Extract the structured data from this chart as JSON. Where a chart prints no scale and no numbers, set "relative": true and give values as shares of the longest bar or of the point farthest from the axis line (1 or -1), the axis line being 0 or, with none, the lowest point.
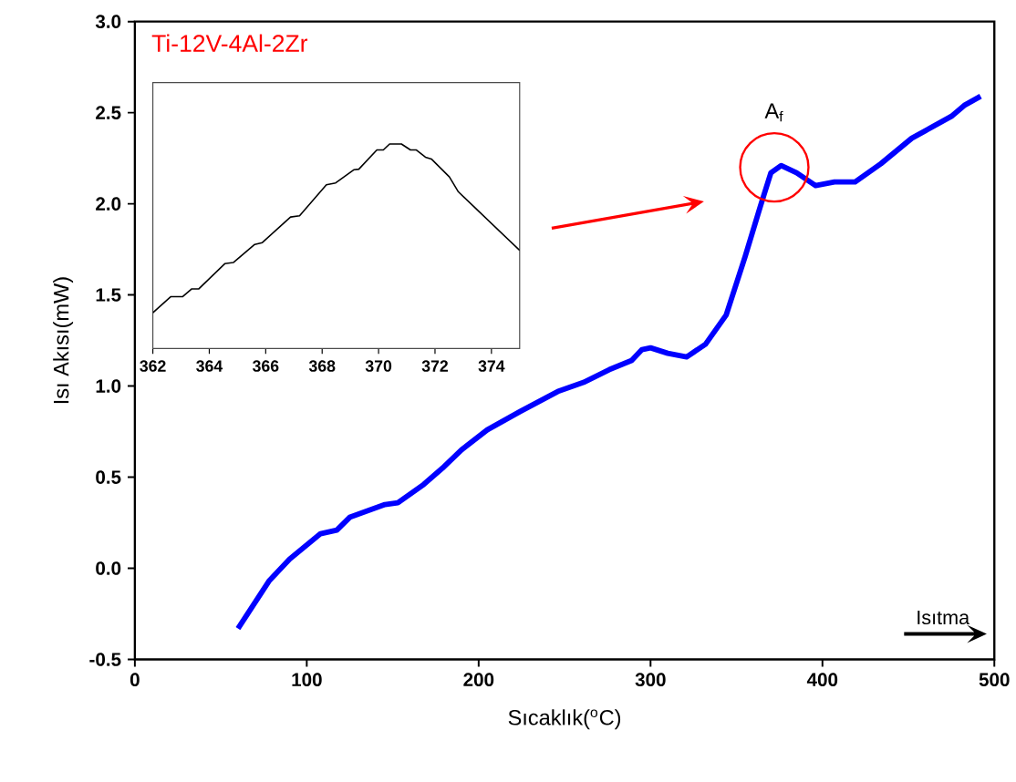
{
  "chart_data": [
    {
      "type": "line",
      "xlabel": "Sıcaklık($^{o}$C)",
      "ylabel": "Isı Akısı(mW)",
      "annotations": [
        "Ti-12V-4Al-2Zr",
        {
          "text": "A$_{f}$",
          "x": 372,
          "y": 2.2
        },
        "Isıtma"
      ],
      "x": [
        60,
        78,
        90,
        108,
        117.5,
        125,
        145.5,
        153,
        168,
        179,
        190,
        205,
        224,
        246,
        261,
        276,
        289,
        295,
        300,
        310,
        321,
        332,
        344,
        355,
        364,
        370,
        376,
        385,
        396,
        407,
        419,
        434,
        452,
        475,
        482.5,
        492
      ],
      "series": [
        {
          "color": "#0000ff",
          "values": [
            -0.33,
            -0.07,
            0.05,
            0.19,
            0.21,
            0.28,
            0.35,
            0.36,
            0.46,
            0.55,
            0.65,
            0.76,
            0.86,
            0.97,
            1.02,
            1.09,
            1.14,
            1.2,
            1.21,
            1.18,
            1.16,
            1.23,
            1.39,
            1.71,
            1.99,
            2.17,
            2.21,
            2.17,
            2.1,
            2.12,
            2.12,
            2.22,
            2.36,
            2.48,
            2.54,
            2.59
          ]
        }
      ],
      "xlim": [
        0,
        500
      ],
      "ylim": [
        -0.5,
        3.0
      ],
      "xticks": [
        0,
        100,
        200,
        300,
        400,
        500
      ],
      "yticks": [
        -0.5,
        {
          "value": 0,
          "label": "0.0"
        },
        0.5,
        {
          "value": 1,
          "label": "1.0"
        },
        1.5,
        {
          "value": 2,
          "label": "2.0"
        },
        2.5,
        {
          "value": 3,
          "label": "3.0"
        }
      ]
    },
    {
      "type": "line",
      "relative": true,
      "tick_labels": "x",
      "x": [
        362,
        362.64,
        363.06,
        363.38,
        363.63,
        364.55,
        364.86,
        365.61,
        365.88,
        366.46,
        366.88,
        367.2,
        368.15,
        368.48,
        369.12,
        369.3,
        369.94,
        370.17,
        370.39,
        370.81,
        371.13,
        371.34,
        371.66,
        371.87,
        372.51,
        372.83,
        375
      ],
      "series": [
        {
          "color": "#000000",
          "values": [
            0.175,
            0.254,
            0.254,
            0.292,
            0.292,
            0.415,
            0.421,
            0.509,
            0.518,
            0.591,
            0.643,
            0.649,
            0.801,
            0.81,
            0.874,
            0.877,
            0.971,
            0.971,
            1.0,
            1.0,
            0.971,
            0.971,
            0.936,
            0.927,
            0.839,
            0.766,
            0.48
          ]
        }
      ],
      "xlim": [
        362,
        375
      ],
      "xticks": [
        362,
        364,
        366,
        368,
        370,
        372,
        374
      ]
    }
  ]
}
